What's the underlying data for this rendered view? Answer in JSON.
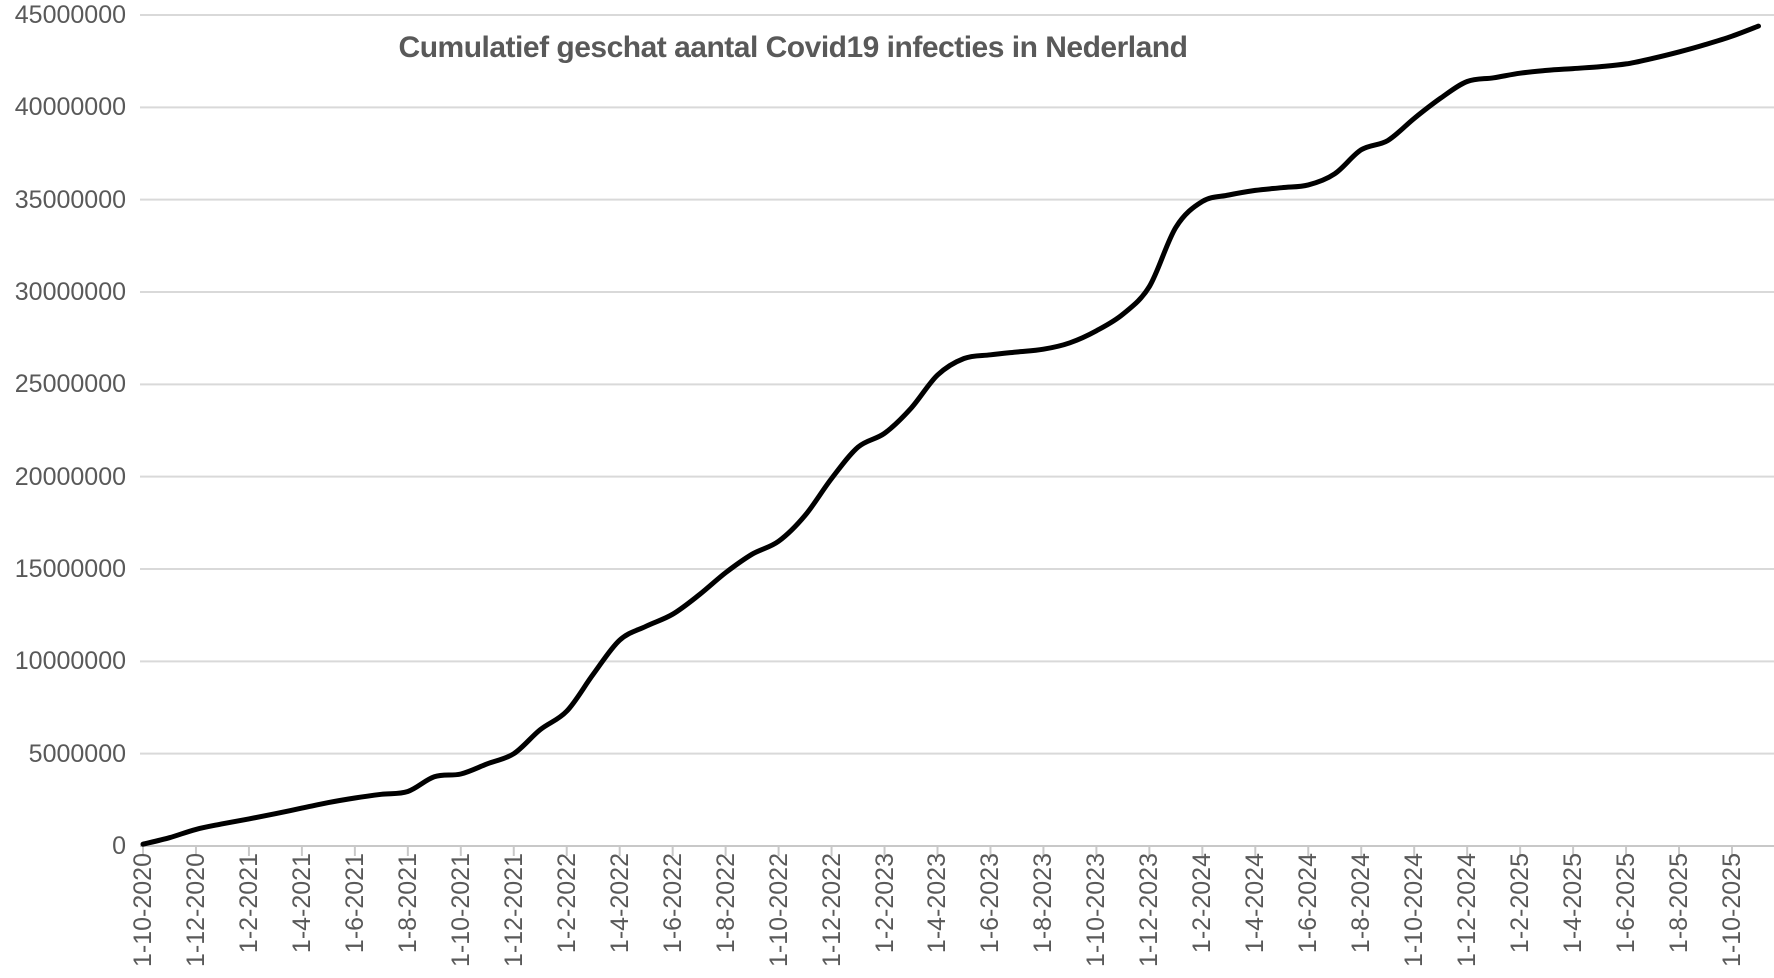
{
  "page": {
    "background": "#ffffff"
  },
  "chart_data": {
    "type": "line",
    "title": "Cumulatief geschat aantal Covid19 infecties in Nederland",
    "xlabel": "",
    "ylabel": "",
    "ylim": [
      0,
      45000000
    ],
    "y_ticks": [
      0,
      5000000,
      10000000,
      15000000,
      20000000,
      25000000,
      30000000,
      35000000,
      40000000,
      45000000
    ],
    "x_tick_labels": [
      "1-10-2020",
      "1-12-2020",
      "1-2-2021",
      "1-4-2021",
      "1-6-2021",
      "1-8-2021",
      "1-10-2021",
      "1-12-2021",
      "1-2-2022",
      "1-4-2022",
      "1-6-2022",
      "1-8-2022",
      "1-10-2022",
      "1-12-2022",
      "1-2-2023",
      "1-4-2023",
      "1-6-2023",
      "1-8-2023",
      "1-10-2023",
      "1-12-2023",
      "1-2-2024",
      "1-4-2024",
      "1-6-2024",
      "1-8-2024",
      "1-10-2024",
      "1-12-2024",
      "1-2-2025",
      "1-4-2025",
      "1-6-2025",
      "1-8-2025",
      "1-10-2025"
    ],
    "grid": "horizontal",
    "legend": "none",
    "styles": {
      "line_color": "#000000",
      "line_width": 5,
      "text_color": "#595959",
      "grid_color": "#d9d9d9",
      "axis_color": "#c8c8c8"
    },
    "series": [
      {
        "points": [
          [
            "1-10-2020",
            100000
          ],
          [
            "1-11-2020",
            450000
          ],
          [
            "1-12-2020",
            900000
          ],
          [
            "1-1-2021",
            1200000
          ],
          [
            "1-2-2021",
            1470000
          ],
          [
            "1-3-2021",
            1750000
          ],
          [
            "1-4-2021",
            2050000
          ],
          [
            "1-5-2021",
            2350000
          ],
          [
            "1-6-2021",
            2600000
          ],
          [
            "1-7-2021",
            2800000
          ],
          [
            "1-8-2021",
            2950000
          ],
          [
            "1-9-2021",
            3750000
          ],
          [
            "1-10-2021",
            3900000
          ],
          [
            "1-11-2021",
            4450000
          ],
          [
            "1-12-2021",
            5000000
          ],
          [
            "1-1-2022",
            6300000
          ],
          [
            "1-2-2022",
            7300000
          ],
          [
            "1-3-2022",
            9300000
          ],
          [
            "1-4-2022",
            11150000
          ],
          [
            "1-5-2022",
            11900000
          ],
          [
            "1-6-2022",
            12550000
          ],
          [
            "1-7-2022",
            13600000
          ],
          [
            "1-8-2022",
            14800000
          ],
          [
            "1-9-2022",
            15800000
          ],
          [
            "1-10-2022",
            16500000
          ],
          [
            "1-11-2022",
            17900000
          ],
          [
            "1-12-2022",
            19900000
          ],
          [
            "1-1-2023",
            21600000
          ],
          [
            "1-2-2023",
            22350000
          ],
          [
            "1-3-2023",
            23700000
          ],
          [
            "1-4-2023",
            25500000
          ],
          [
            "1-5-2023",
            26400000
          ],
          [
            "1-6-2023",
            26600000
          ],
          [
            "1-7-2023",
            26750000
          ],
          [
            "1-8-2023",
            26900000
          ],
          [
            "1-9-2023",
            27250000
          ],
          [
            "1-10-2023",
            27900000
          ],
          [
            "1-11-2023",
            28800000
          ],
          [
            "1-12-2023",
            30300000
          ],
          [
            "1-1-2024",
            33500000
          ],
          [
            "1-2-2024",
            34900000
          ],
          [
            "1-3-2024",
            35250000
          ],
          [
            "1-4-2024",
            35500000
          ],
          [
            "1-5-2024",
            35650000
          ],
          [
            "1-6-2024",
            35800000
          ],
          [
            "1-7-2024",
            36400000
          ],
          [
            "1-8-2024",
            37700000
          ],
          [
            "1-9-2024",
            38200000
          ],
          [
            "1-10-2024",
            39400000
          ],
          [
            "1-11-2024",
            40500000
          ],
          [
            "1-12-2024",
            41400000
          ],
          [
            "1-1-2025",
            41600000
          ],
          [
            "1-2-2025",
            41850000
          ],
          [
            "1-3-2025",
            42000000
          ],
          [
            "1-4-2025",
            42100000
          ],
          [
            "1-5-2025",
            42200000
          ],
          [
            "1-6-2025",
            42350000
          ],
          [
            "1-7-2025",
            42650000
          ],
          [
            "1-8-2025",
            43000000
          ],
          [
            "1-9-2025",
            43400000
          ],
          [
            "1-10-2025",
            43850000
          ],
          [
            "1-11-2025",
            44400000
          ]
        ]
      }
    ]
  }
}
